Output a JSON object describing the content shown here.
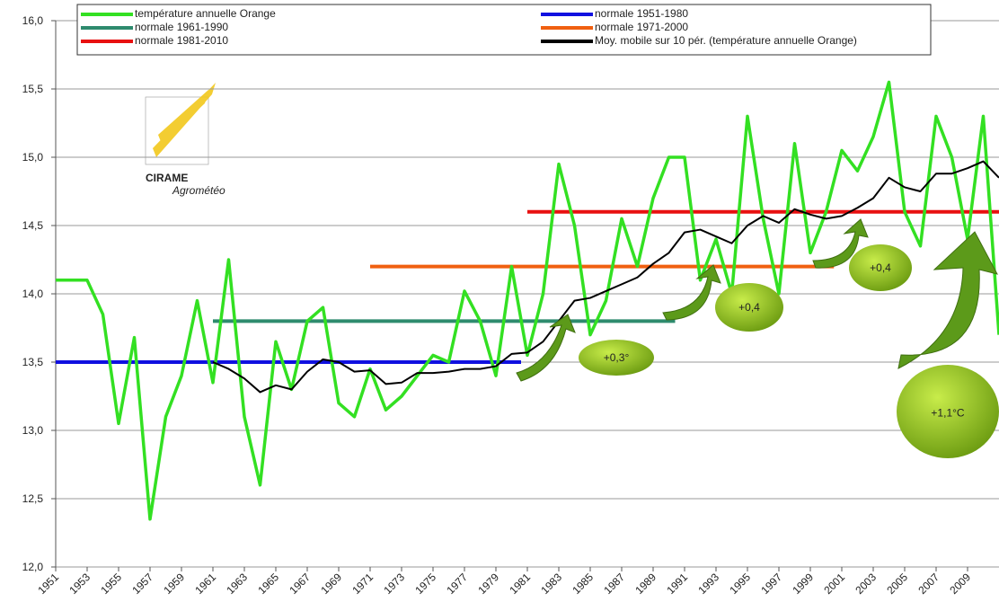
{
  "chart_data": {
    "type": "line",
    "x": [
      1951,
      1952,
      1953,
      1954,
      1955,
      1956,
      1957,
      1958,
      1959,
      1960,
      1961,
      1962,
      1963,
      1964,
      1965,
      1966,
      1967,
      1968,
      1969,
      1970,
      1971,
      1972,
      1973,
      1974,
      1975,
      1976,
      1977,
      1978,
      1979,
      1980,
      1981,
      1982,
      1983,
      1984,
      1985,
      1986,
      1987,
      1988,
      1989,
      1990,
      1991,
      1992,
      1993,
      1994,
      1995,
      1996,
      1997,
      1998,
      1999,
      2000,
      2001,
      2002,
      2003,
      2004,
      2005,
      2006,
      2007,
      2008,
      2009,
      2010,
      2011
    ],
    "series": [
      {
        "name": "température annuelle Orange",
        "color": "#33e022",
        "values": [
          14.1,
          14.1,
          14.1,
          13.85,
          13.05,
          13.68,
          12.35,
          13.1,
          13.4,
          13.95,
          13.35,
          14.25,
          13.1,
          12.6,
          13.65,
          13.3,
          13.8,
          13.9,
          13.2,
          13.1,
          13.45,
          13.15,
          13.25,
          13.4,
          13.55,
          13.5,
          14.02,
          13.8,
          13.4,
          14.2,
          13.55,
          14.0,
          14.95,
          14.5,
          13.7,
          13.95,
          14.55,
          14.2,
          14.7,
          15.0,
          15.0,
          14.1,
          14.4,
          14.0,
          15.3,
          14.55,
          14.0,
          15.1,
          14.3,
          14.6,
          15.05,
          14.9,
          15.15,
          15.55,
          14.6,
          14.35,
          15.3,
          15.0,
          14.4,
          15.3,
          13.7
        ]
      },
      {
        "name": "Moy. mobile sur 10 pér. (température annuelle Orange)",
        "color": "#000000",
        "values": [
          null,
          null,
          null,
          null,
          null,
          null,
          null,
          null,
          null,
          null,
          13.5,
          13.45,
          13.38,
          13.28,
          13.33,
          13.3,
          13.43,
          13.52,
          13.5,
          13.43,
          13.44,
          13.34,
          13.35,
          13.42,
          13.42,
          13.43,
          13.45,
          13.45,
          13.47,
          13.56,
          13.57,
          13.65,
          13.8,
          13.95,
          13.97,
          14.02,
          14.07,
          14.12,
          14.22,
          14.3,
          14.45,
          14.47,
          14.42,
          14.37,
          14.5,
          14.57,
          14.52,
          14.62,
          14.58,
          14.55,
          14.57,
          14.63,
          14.7,
          14.85,
          14.78,
          14.75,
          14.88,
          14.88,
          14.92,
          14.97,
          14.85
        ]
      }
    ],
    "normals": [
      {
        "name": "normale 1951-1980",
        "color": "#1010e0",
        "value": 13.5,
        "x": [
          1951,
          1980.6
        ]
      },
      {
        "name": "normale 1961-1990",
        "color": "#2e8b6e",
        "value": 13.8,
        "x": [
          1961,
          1990.4
        ]
      },
      {
        "name": "normale 1971-2000",
        "color": "#f06010",
        "value": 14.2,
        "x": [
          1971,
          2000.5
        ]
      },
      {
        "name": "normale 1981-2010",
        "color": "#e81010",
        "value": 14.6,
        "x": [
          1981,
          2011
        ]
      }
    ],
    "xlim": [
      1951,
      2011
    ],
    "xticks": [
      1951,
      1953,
      1955,
      1957,
      1959,
      1961,
      1963,
      1965,
      1967,
      1969,
      1971,
      1973,
      1975,
      1977,
      1979,
      1981,
      1983,
      1985,
      1987,
      1989,
      1991,
      1993,
      1995,
      1997,
      1999,
      2001,
      2003,
      2005,
      2007,
      2009
    ],
    "ylim": [
      12.0,
      16.0
    ],
    "yticks": [
      {
        "value": 12.0,
        "label": "12,0"
      },
      {
        "value": 12.5,
        "label": "12,5"
      },
      {
        "value": 13.0,
        "label": "13,0"
      },
      {
        "value": 13.5,
        "label": "13,5"
      },
      {
        "value": 14.0,
        "label": "14,0"
      },
      {
        "value": 14.5,
        "label": "14,5"
      },
      {
        "value": 15.0,
        "label": "15,0"
      },
      {
        "value": 15.5,
        "label": "15,5"
      },
      {
        "value": 16.0,
        "label": "16,0"
      }
    ],
    "grid": true,
    "annotations": [
      "+0,3°",
      "+0,4",
      "+0,4",
      "+1,1°C"
    ],
    "logo": {
      "name": "CIRAME",
      "subtitle": "Agrométéo"
    }
  }
}
